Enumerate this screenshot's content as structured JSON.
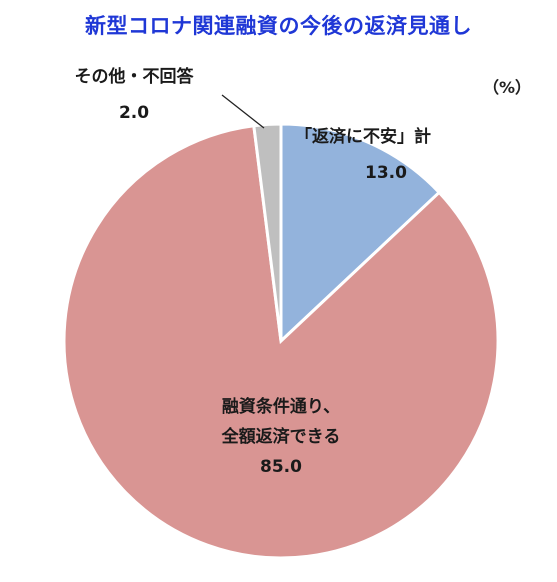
{
  "title": "新型コロナ関連融資の今後の返済見通し",
  "unit": "（%）",
  "chart_data": {
    "type": "pie",
    "title": "新型コロナ関連融資の今後の返済見通し",
    "unit": "%",
    "slices": [
      {
        "label_lines": [
          "「返済に不安」計"
        ],
        "value": 13.0,
        "value_text": "13.0",
        "color": "#93b3dc"
      },
      {
        "label_lines": [
          "融資条件通り、",
          "全額返済できる"
        ],
        "value": 85.0,
        "value_text": "85.0",
        "color": "#d99593"
      },
      {
        "label_lines": [
          "その他・不回答"
        ],
        "value": 2.0,
        "value_text": "2.0",
        "color": "#bfbfbf"
      }
    ]
  }
}
